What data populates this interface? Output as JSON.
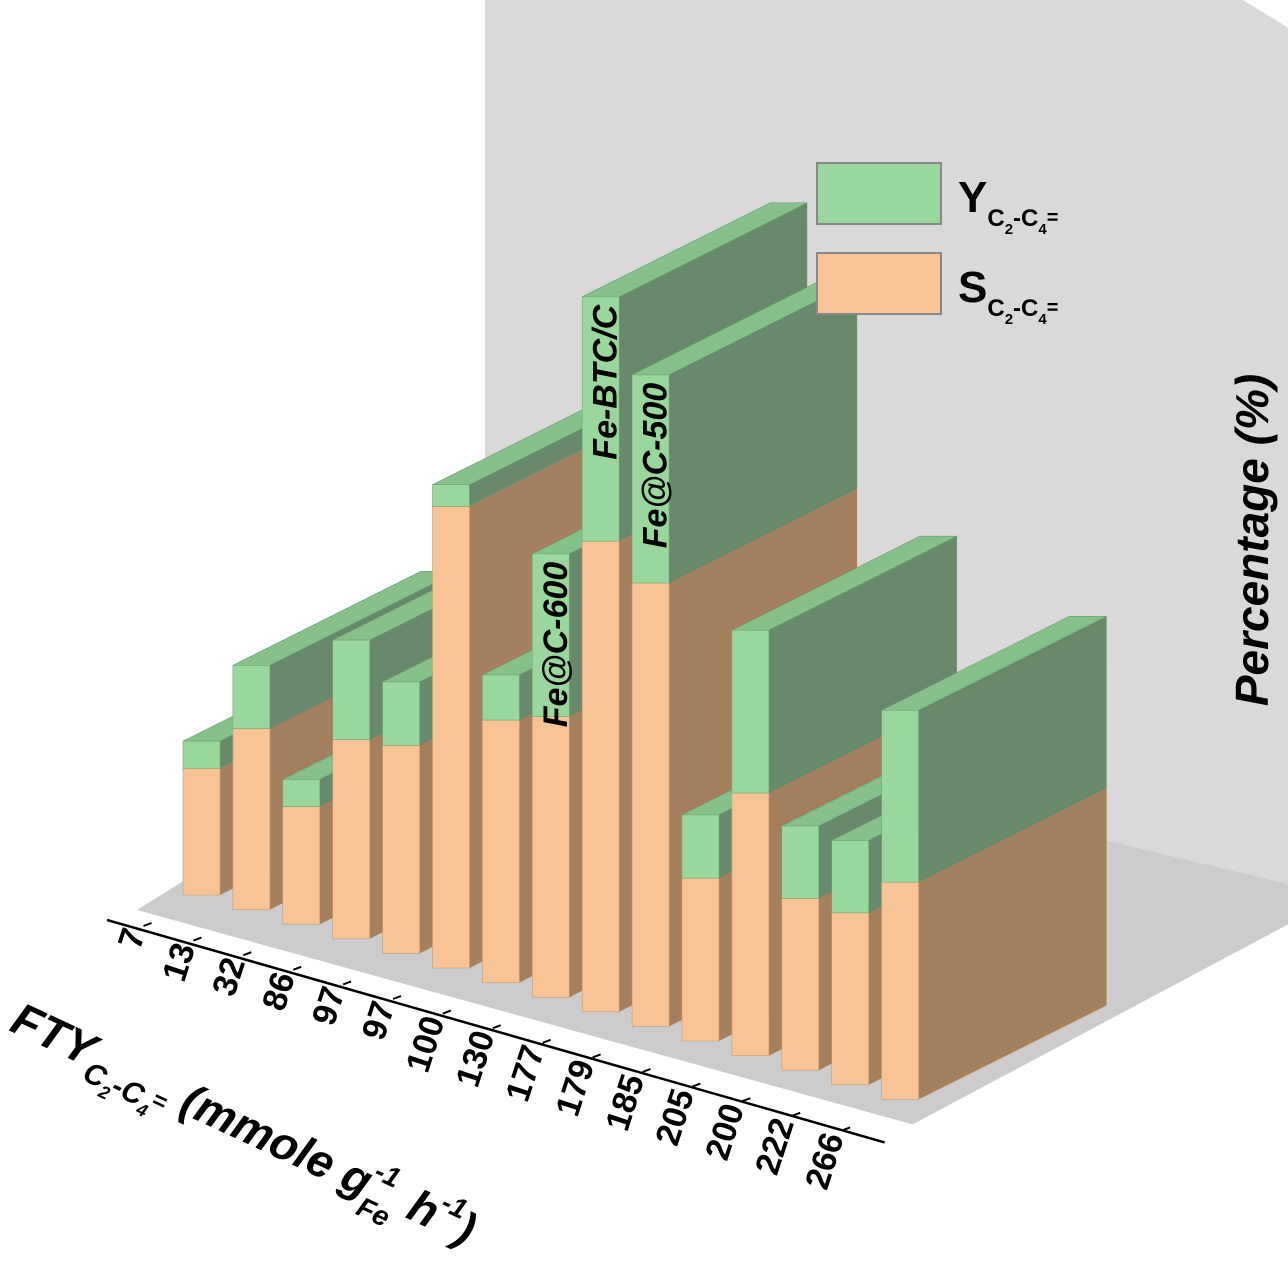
{
  "chart_data": {
    "type": "bar",
    "stacked": true,
    "projection": "3d",
    "x_label_main": "FTY",
    "x_label_sub": "C",
    "x_label_sub_1": "2",
    "x_label_dash": "-C",
    "x_label_sub_2": "4",
    "x_label_eq": "=",
    "x_label_units_pre": "(mmole g",
    "x_label_units_sub": "Fe",
    "x_label_units_sup": "-1",
    "x_label_units_h": "h",
    "x_label_units_hsup": "-1",
    "x_label_units_close": ")",
    "ylabel": "Percentage (%)",
    "ylim": [
      0,
      45
    ],
    "yticks": [
      "0",
      "10",
      "20",
      "30",
      "40"
    ],
    "categories": [
      "7",
      "13",
      "32",
      "86",
      "97",
      "97",
      "100",
      "130",
      "177",
      "179",
      "185",
      "205",
      "200",
      "222",
      "266"
    ],
    "series": [
      {
        "name": "S",
        "name_sub": "C",
        "name_sub_1": "2",
        "name_dash": "-C",
        "name_sub_2": "4",
        "name_eq": "=",
        "values": [
          7,
          10,
          6.5,
          11,
          11.5,
          25.5,
          14.5,
          15.5,
          26,
          24.5,
          9,
          14.5,
          9.5,
          9.5,
          12
        ],
        "color": "#f9c495"
      },
      {
        "name": "Y",
        "name_sub": "C",
        "name_sub_1": "2",
        "name_dash": "-C",
        "name_sub_2": "4",
        "name_eq": "=",
        "values": [
          1.5,
          3.5,
          1.5,
          5.5,
          3.5,
          1.2,
          2.5,
          9,
          13.5,
          11.5,
          3.5,
          9,
          4,
          4,
          9.5
        ],
        "color": "#99d79c"
      }
    ],
    "annotations": [
      {
        "text": "Fe@C-600",
        "category_index": 7
      },
      {
        "text": "Fe-BTC/C",
        "category_index": 8
      },
      {
        "text": "Fe@C-500",
        "category_index": 9
      }
    ],
    "legend_position": "top-right",
    "colors": {
      "wall": "#d9d9d9",
      "floor": "#cccccc",
      "orange_dark": "#a5805e",
      "green_dark": "#68896a",
      "orange_top": "#e8b88c",
      "green_top": "#86c18a"
    }
  }
}
